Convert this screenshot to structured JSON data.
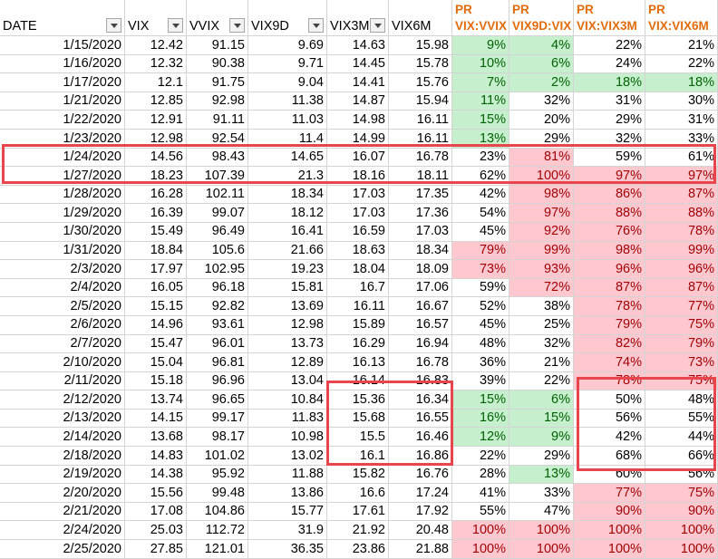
{
  "headers": [
    "DATE",
    "VIX",
    "VVIX",
    "VIX9D",
    "VIX3M",
    "VIX6M",
    [
      "PR",
      "VIX:VVIX"
    ],
    [
      "PR",
      "VIX9D:VIX"
    ],
    [
      "PR",
      "VIX:VIX3M"
    ],
    [
      "PR",
      "VIX:VIX6M"
    ]
  ],
  "rows": [
    {
      "v": [
        "1/15/2020",
        "12.42",
        "91.15",
        "9.69",
        "14.63",
        "15.98",
        "9%",
        "4%",
        "22%",
        "21%"
      ],
      "f": [
        "",
        "",
        "",
        "",
        "",
        "",
        "g",
        "g",
        "",
        ""
      ]
    },
    {
      "v": [
        "1/16/2020",
        "12.32",
        "90.38",
        "9.71",
        "14.45",
        "15.78",
        "10%",
        "6%",
        "24%",
        "22%"
      ],
      "f": [
        "",
        "",
        "",
        "",
        "",
        "",
        "g",
        "g",
        "",
        ""
      ]
    },
    {
      "v": [
        "1/17/2020",
        "12.1",
        "91.75",
        "9.04",
        "14.41",
        "15.76",
        "7%",
        "2%",
        "18%",
        "18%"
      ],
      "f": [
        "",
        "",
        "",
        "",
        "",
        "",
        "g",
        "g",
        "g",
        "g"
      ]
    },
    {
      "v": [
        "1/21/2020",
        "12.85",
        "92.98",
        "11.38",
        "14.87",
        "15.94",
        "11%",
        "32%",
        "31%",
        "30%"
      ],
      "f": [
        "",
        "",
        "",
        "",
        "",
        "",
        "g",
        "",
        "",
        ""
      ]
    },
    {
      "v": [
        "1/22/2020",
        "12.91",
        "91.11",
        "11.03",
        "14.98",
        "16.11",
        "15%",
        "20%",
        "29%",
        "31%"
      ],
      "f": [
        "",
        "",
        "",
        "",
        "",
        "",
        "g",
        "",
        "",
        ""
      ]
    },
    {
      "v": [
        "1/23/2020",
        "12.98",
        "92.54",
        "11.4",
        "14.99",
        "16.11",
        "13%",
        "29%",
        "32%",
        "33%"
      ],
      "f": [
        "",
        "",
        "",
        "",
        "",
        "",
        "g",
        "",
        "",
        ""
      ]
    },
    {
      "v": [
        "1/24/2020",
        "14.56",
        "98.43",
        "14.65",
        "16.07",
        "16.78",
        "23%",
        "81%",
        "59%",
        "61%"
      ],
      "f": [
        "",
        "",
        "",
        "",
        "",
        "",
        "",
        "r",
        "",
        ""
      ]
    },
    {
      "v": [
        "1/27/2020",
        "18.23",
        "107.39",
        "21.3",
        "18.16",
        "18.11",
        "62%",
        "100%",
        "97%",
        "97%"
      ],
      "f": [
        "",
        "",
        "",
        "",
        "",
        "",
        "",
        "r",
        "r",
        "r"
      ]
    },
    {
      "v": [
        "1/28/2020",
        "16.28",
        "102.11",
        "18.34",
        "17.03",
        "17.35",
        "42%",
        "98%",
        "86%",
        "87%"
      ],
      "f": [
        "",
        "",
        "",
        "",
        "",
        "",
        "",
        "r",
        "r",
        "r"
      ]
    },
    {
      "v": [
        "1/29/2020",
        "16.39",
        "99.07",
        "18.12",
        "17.03",
        "17.36",
        "54%",
        "97%",
        "88%",
        "88%"
      ],
      "f": [
        "",
        "",
        "",
        "",
        "",
        "",
        "",
        "r",
        "r",
        "r"
      ]
    },
    {
      "v": [
        "1/30/2020",
        "15.49",
        "96.49",
        "16.41",
        "16.59",
        "17.03",
        "45%",
        "92%",
        "76%",
        "78%"
      ],
      "f": [
        "",
        "",
        "",
        "",
        "",
        "",
        "",
        "r",
        "r",
        "r"
      ]
    },
    {
      "v": [
        "1/31/2020",
        "18.84",
        "105.6",
        "21.66",
        "18.63",
        "18.34",
        "79%",
        "99%",
        "98%",
        "99%"
      ],
      "f": [
        "",
        "",
        "",
        "",
        "",
        "",
        "r",
        "r",
        "r",
        "r"
      ]
    },
    {
      "v": [
        "2/3/2020",
        "17.97",
        "102.95",
        "19.23",
        "18.04",
        "18.09",
        "73%",
        "93%",
        "96%",
        "96%"
      ],
      "f": [
        "",
        "",
        "",
        "",
        "",
        "",
        "r",
        "r",
        "r",
        "r"
      ]
    },
    {
      "v": [
        "2/4/2020",
        "16.05",
        "96.18",
        "15.81",
        "16.7",
        "17.06",
        "59%",
        "72%",
        "87%",
        "87%"
      ],
      "f": [
        "",
        "",
        "",
        "",
        "",
        "",
        "",
        "r",
        "r",
        "r"
      ]
    },
    {
      "v": [
        "2/5/2020",
        "15.15",
        "92.82",
        "13.69",
        "16.11",
        "16.67",
        "52%",
        "38%",
        "78%",
        "77%"
      ],
      "f": [
        "",
        "",
        "",
        "",
        "",
        "",
        "",
        "",
        "r",
        "r"
      ]
    },
    {
      "v": [
        "2/6/2020",
        "14.96",
        "93.61",
        "12.98",
        "15.89",
        "16.57",
        "45%",
        "25%",
        "79%",
        "75%"
      ],
      "f": [
        "",
        "",
        "",
        "",
        "",
        "",
        "",
        "",
        "r",
        "r"
      ]
    },
    {
      "v": [
        "2/7/2020",
        "15.47",
        "96.01",
        "13.73",
        "16.29",
        "16.94",
        "48%",
        "32%",
        "82%",
        "79%"
      ],
      "f": [
        "",
        "",
        "",
        "",
        "",
        "",
        "",
        "",
        "r",
        "r"
      ]
    },
    {
      "v": [
        "2/10/2020",
        "15.04",
        "96.81",
        "12.89",
        "16.13",
        "16.78",
        "36%",
        "21%",
        "74%",
        "73%"
      ],
      "f": [
        "",
        "",
        "",
        "",
        "",
        "",
        "",
        "",
        "r",
        "r"
      ]
    },
    {
      "v": [
        "2/11/2020",
        "15.18",
        "96.96",
        "13.04",
        "16.14",
        "16.83",
        "39%",
        "22%",
        "78%",
        "75%"
      ],
      "f": [
        "",
        "",
        "",
        "",
        "",
        "",
        "",
        "",
        "r",
        "r"
      ]
    },
    {
      "v": [
        "2/12/2020",
        "13.74",
        "96.65",
        "10.84",
        "15.36",
        "16.34",
        "15%",
        "6%",
        "50%",
        "48%"
      ],
      "f": [
        "",
        "",
        "",
        "",
        "",
        "",
        "g",
        "g",
        "",
        ""
      ]
    },
    {
      "v": [
        "2/13/2020",
        "14.15",
        "99.17",
        "11.83",
        "15.68",
        "16.55",
        "16%",
        "15%",
        "56%",
        "55%"
      ],
      "f": [
        "",
        "",
        "",
        "",
        "",
        "",
        "g",
        "g",
        "",
        ""
      ]
    },
    {
      "v": [
        "2/14/2020",
        "13.68",
        "98.17",
        "10.98",
        "15.5",
        "16.46",
        "12%",
        "9%",
        "42%",
        "44%"
      ],
      "f": [
        "",
        "",
        "",
        "",
        "",
        "",
        "g",
        "g",
        "",
        ""
      ]
    },
    {
      "v": [
        "2/18/2020",
        "14.83",
        "101.02",
        "13.02",
        "16.1",
        "16.86",
        "22%",
        "29%",
        "68%",
        "66%"
      ],
      "f": [
        "",
        "",
        "",
        "",
        "",
        "",
        "",
        "",
        "",
        ""
      ]
    },
    {
      "v": [
        "2/19/2020",
        "14.38",
        "95.92",
        "11.88",
        "15.82",
        "16.76",
        "28%",
        "13%",
        "60%",
        "56%"
      ],
      "f": [
        "",
        "",
        "",
        "",
        "",
        "",
        "",
        "g",
        "",
        ""
      ]
    },
    {
      "v": [
        "2/20/2020",
        "15.56",
        "99.48",
        "13.86",
        "16.6",
        "17.24",
        "41%",
        "33%",
        "77%",
        "75%"
      ],
      "f": [
        "",
        "",
        "",
        "",
        "",
        "",
        "",
        "",
        "r",
        "r"
      ]
    },
    {
      "v": [
        "2/21/2020",
        "17.08",
        "104.86",
        "15.77",
        "17.61",
        "17.92",
        "55%",
        "47%",
        "90%",
        "90%"
      ],
      "f": [
        "",
        "",
        "",
        "",
        "",
        "",
        "",
        "",
        "r",
        "r"
      ]
    },
    {
      "v": [
        "2/24/2020",
        "25.03",
        "112.72",
        "31.9",
        "21.92",
        "20.48",
        "100%",
        "100%",
        "100%",
        "100%"
      ],
      "f": [
        "",
        "",
        "",
        "",
        "",
        "",
        "r",
        "r",
        "r",
        "r"
      ]
    },
    {
      "v": [
        "2/25/2020",
        "27.85",
        "121.01",
        "36.35",
        "23.86",
        "21.88",
        "100%",
        "100%",
        "100%",
        "100%"
      ],
      "f": [
        "",
        "",
        "",
        "",
        "",
        "",
        "r",
        "r",
        "r",
        "r"
      ]
    }
  ],
  "colors": {
    "good_fill": "#c6efce",
    "good_text": "#006100",
    "bad_fill": "#ffc7ce",
    "bad_text": "#9c0006",
    "pr_header": "#e26b0a",
    "highlight_box": "#e8464c"
  },
  "icons": {
    "filter": "filter-dropdown-icon"
  }
}
